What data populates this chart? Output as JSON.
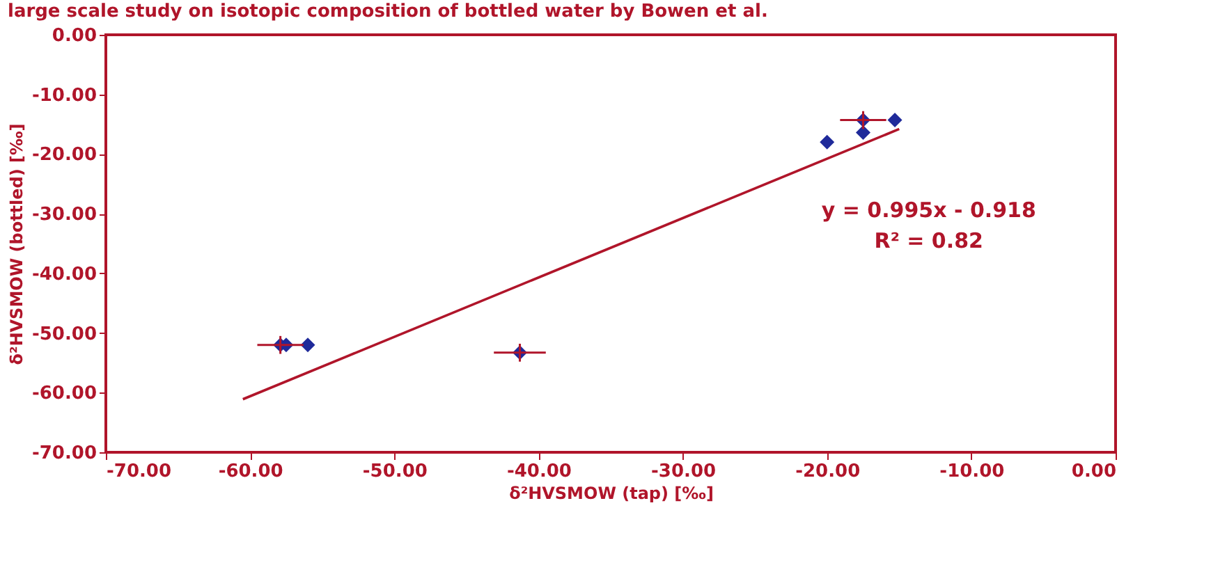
{
  "chart_data": {
    "type": "scatter",
    "title": "large scale study on isotopic composition of bottled water by Bowen et al.",
    "xlabel": "δ²HVSMOW (tap) [‰]",
    "ylabel": "δ²HVSMOW (bottled) [‰]",
    "xlim": [
      -70,
      0
    ],
    "ylim": [
      -70,
      0
    ],
    "xticks": [
      {
        "value": -70,
        "label": "-70.00"
      },
      {
        "value": -60,
        "label": "-60.00"
      },
      {
        "value": -50,
        "label": "-50.00"
      },
      {
        "value": -40,
        "label": "-40.00"
      },
      {
        "value": -30,
        "label": "-30.00"
      },
      {
        "value": -20,
        "label": "-20.00"
      },
      {
        "value": -10,
        "label": "-10.00"
      },
      {
        "value": 0,
        "label": "0.00"
      }
    ],
    "yticks": [
      {
        "value": -70,
        "label": "-70.00"
      },
      {
        "value": -60,
        "label": "-60.00"
      },
      {
        "value": -50,
        "label": "-50.00"
      },
      {
        "value": -40,
        "label": "-40.00"
      },
      {
        "value": -30,
        "label": "-30.00"
      },
      {
        "value": -20,
        "label": "-20.00"
      },
      {
        "value": -10,
        "label": "-10.00"
      },
      {
        "value": 0,
        "label": "0.00"
      }
    ],
    "series": [
      {
        "type": "scatter",
        "color": "#1f2a9a",
        "marker": "diamond",
        "x": [
          -57.9,
          -57.5,
          -56.0,
          -41.3,
          -20.0,
          -17.5,
          -17.5,
          -15.3
        ],
        "values": [
          -52.0,
          -52.0,
          -52.0,
          -53.3,
          -18.0,
          -14.3,
          -16.4,
          -14.3
        ],
        "errors": [
          1.5,
          null,
          null,
          1.5,
          null,
          1.5,
          null,
          null
        ],
        "xerrors": [
          1.6,
          null,
          null,
          1.8,
          null,
          1.6,
          null,
          null
        ]
      },
      {
        "type": "line",
        "color": "#b0152a",
        "marker": "none",
        "line_style": "solid",
        "x": [
          -60.5,
          -15.0
        ],
        "values": [
          -61.1,
          -15.8
        ]
      }
    ],
    "annotations": [
      "y = 0.995x - 0.918",
      "R² = 0.82"
    ]
  }
}
